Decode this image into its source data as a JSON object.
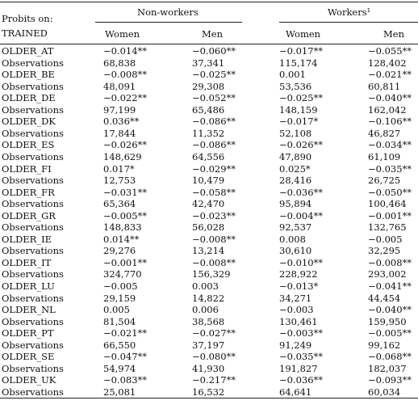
{
  "header": {
    "probits_on": "Probits on:",
    "trained": "TRAINED",
    "group_nonworkers": "Non-workers",
    "group_workers": "Workers¹",
    "col_women_1": "Women",
    "col_men_1": "Men",
    "col_women_2": "Women",
    "col_men_2": "Men"
  },
  "rows": [
    {
      "label": "OLDER_AT",
      "v": [
        "−0.014**",
        "−0.060**",
        "−0.017**",
        "−0.055**"
      ]
    },
    {
      "label": "Observations",
      "v": [
        "68,838",
        "37,341",
        "115,174",
        "128,402"
      ]
    },
    {
      "label": "OLDER_BE",
      "v": [
        "−0.008**",
        "−0.025**",
        "0.001",
        "−0.021**"
      ]
    },
    {
      "label": "Observations",
      "v": [
        "48,091",
        "29,308",
        "53,536",
        "60,811"
      ]
    },
    {
      "label": "OLDER_DE",
      "v": [
        "−0.022**",
        "−0.052**",
        "−0.025**",
        "−0.040**"
      ]
    },
    {
      "label": "Observations",
      "v": [
        "97,199",
        "65,486",
        "148,159",
        "162,042"
      ]
    },
    {
      "label": "OLDER_DK",
      "v": [
        "0.036**",
        "−0.086**",
        "−0.017*",
        "−0.106**"
      ]
    },
    {
      "label": "Observations",
      "v": [
        "17,844",
        "11,352",
        "52,108",
        "46,827"
      ]
    },
    {
      "label": "OLDER_ES",
      "v": [
        "−0.026**",
        "−0.086**",
        "−0.026**",
        "−0.034**"
      ]
    },
    {
      "label": "Observations",
      "v": [
        "148,629",
        "64,556",
        "47,890",
        "61,109"
      ]
    },
    {
      "label": "OLDER_FI",
      "v": [
        "0.017*",
        "−0.029**",
        "0.025*",
        "−0.035**"
      ]
    },
    {
      "label": "Observations",
      "v": [
        "12,753",
        "10,479",
        "28,416",
        "26,725"
      ]
    },
    {
      "label": "OLDER_FR",
      "v": [
        "−0.031**",
        "−0.058**",
        "−0.036**",
        "−0.050**"
      ]
    },
    {
      "label": "Observations",
      "v": [
        "65,364",
        "42,470",
        "95,894",
        "100,464"
      ]
    },
    {
      "label": "OLDER_GR",
      "v": [
        "−0.005**",
        "−0.023**",
        "−0.004**",
        "−0.001**"
      ]
    },
    {
      "label": "Observations",
      "v": [
        "148,833",
        "56,028",
        "92,537",
        "132,765"
      ]
    },
    {
      "label": "OLDER_IE",
      "v": [
        "0.014**",
        "−0.008**",
        "0.008",
        "−0.005"
      ]
    },
    {
      "label": "Observations",
      "v": [
        "29,276",
        "13,214",
        "30,610",
        "32,295"
      ]
    },
    {
      "label": "OLDER_IT",
      "v": [
        "−0.001**",
        "−0.008**",
        "−0.010**",
        "−0.008**"
      ]
    },
    {
      "label": "Observations",
      "v": [
        "324,770",
        "156,329",
        "228,922",
        "293,002"
      ]
    },
    {
      "label": "OLDER_LU",
      "v": [
        "−0.005",
        "0.003",
        "−0.013*",
        "−0.041**"
      ]
    },
    {
      "label": "Observations",
      "v": [
        "29,159",
        "14,822",
        "34,271",
        "44,454"
      ]
    },
    {
      "label": "OLDER_NL",
      "v": [
        "0.005",
        "0.006",
        "−0.003",
        "−0.040**"
      ]
    },
    {
      "label": "Observations",
      "v": [
        "81,504",
        "38,568",
        "130,461",
        "159,950"
      ]
    },
    {
      "label": "OLDER_PT",
      "v": [
        "−0.021**",
        "−0.027**",
        "−0.003**",
        "−0.005**"
      ]
    },
    {
      "label": "Observations",
      "v": [
        "66,550",
        "37,197",
        "91,249",
        "99,162"
      ]
    },
    {
      "label": "OLDER_SE",
      "v": [
        "−0.047**",
        "−0.080**",
        "−0.035**",
        "−0.068**"
      ]
    },
    {
      "label": "Observations",
      "v": [
        "54,974",
        "41,930",
        "191,827",
        "182,037"
      ]
    },
    {
      "label": "OLDER_UK",
      "v": [
        "−0.083**",
        "−0.217**",
        "−0.036**",
        "−0.093**"
      ]
    },
    {
      "label": "Observations",
      "v": [
        "25,081",
        "16,532",
        "64,641",
        "60,034"
      ]
    }
  ]
}
